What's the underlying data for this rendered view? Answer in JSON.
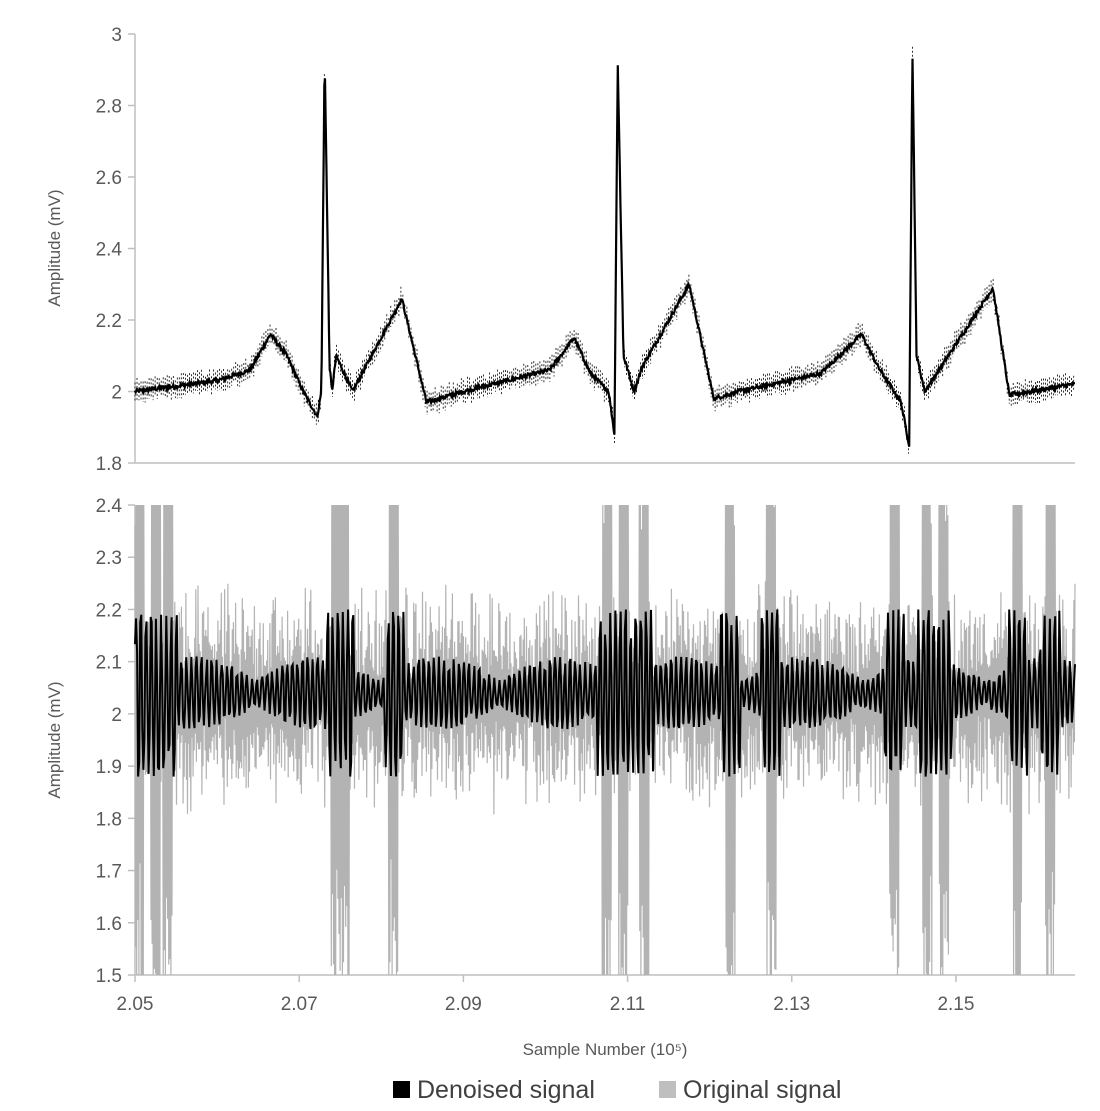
{
  "chart_data": [
    {
      "type": "line",
      "panel": "top",
      "xlabel": "",
      "ylabel": "Amplitude (mV)",
      "xlim": [
        2.05,
        2.1645
      ],
      "ylim": [
        1.8,
        3.0
      ],
      "yticks": [
        "1.8",
        "2",
        "2.2",
        "2.4",
        "2.6",
        "2.8",
        "3"
      ],
      "grid": false,
      "series": [
        {
          "name": "Denoised signal",
          "color": "#000000",
          "description_points": {
            "x": [
              2.05,
              2.06,
              2.064,
              2.0665,
              2.0685,
              2.0705,
              2.0722,
              2.0727,
              2.0731,
              2.0737,
              2.074,
              2.0745,
              2.0765,
              2.0825,
              2.0855,
              2.09,
              2.1005,
              2.1035,
              2.1055,
              2.1077,
              2.1084,
              2.1088,
              2.1095,
              2.1108,
              2.1118,
              2.1175,
              2.1205,
              2.1235,
              2.1335,
              2.1385,
              2.1405,
              2.1433,
              2.1443,
              2.1447,
              2.1452,
              2.1462,
              2.1545,
              2.1565,
              2.1642
            ],
            "y": [
              2.0,
              2.03,
              2.06,
              2.16,
              2.1,
              2.0,
              1.93,
              2.0,
              2.94,
              2.07,
              2.0,
              2.1,
              2.0,
              2.26,
              1.97,
              2.0,
              2.06,
              2.15,
              2.05,
              2.0,
              1.88,
              2.92,
              2.1,
              2.0,
              2.07,
              2.3,
              1.98,
              2.0,
              2.05,
              2.16,
              2.07,
              1.97,
              1.85,
              2.95,
              2.1,
              2.0,
              2.29,
              1.99,
              2.02
            ]
          }
        },
        {
          "name": "Original signal",
          "color": "#000000",
          "style": "dashed noisy envelope around denoised",
          "noise_amplitude": 0.03
        }
      ]
    },
    {
      "type": "line",
      "panel": "bottom",
      "xlabel": "Sample Number (10⁵)",
      "ylabel": "Amplitude (mV)",
      "xlim": [
        2.05,
        2.1645
      ],
      "ylim": [
        1.5,
        2.4
      ],
      "yticks": [
        "1.5",
        "1.6",
        "1.7",
        "1.8",
        "1.9",
        "2",
        "2.1",
        "2.2",
        "2.3",
        "2.4"
      ],
      "xticks": [
        "2.05",
        "2.07",
        "2.09",
        "2.11",
        "2.13",
        "2.15"
      ],
      "grid": false,
      "series": [
        {
          "name": "Original signal",
          "color": "#b3b3b3",
          "center": 2.03,
          "typical_amplitude": 0.18,
          "spike_positions": [
            2.0505,
            2.0525,
            2.054,
            2.0745,
            2.0755,
            2.0815,
            2.1075,
            2.1095,
            2.112,
            2.1225,
            2.1275,
            2.1425,
            2.1465,
            2.1485,
            2.1575,
            2.1615
          ]
        },
        {
          "name": "Denoised signal",
          "color": "#000000",
          "center": 2.04,
          "typical_amplitude": 0.07
        }
      ]
    }
  ],
  "legend": {
    "placement": "bottom-center",
    "items": [
      {
        "label": "Denoised signal",
        "color": "#000000"
      },
      {
        "label": "Original signal",
        "color": "#bfbfbf"
      }
    ]
  },
  "colors": {
    "axis": "#bfbfbf",
    "tick_text": "#595959"
  }
}
